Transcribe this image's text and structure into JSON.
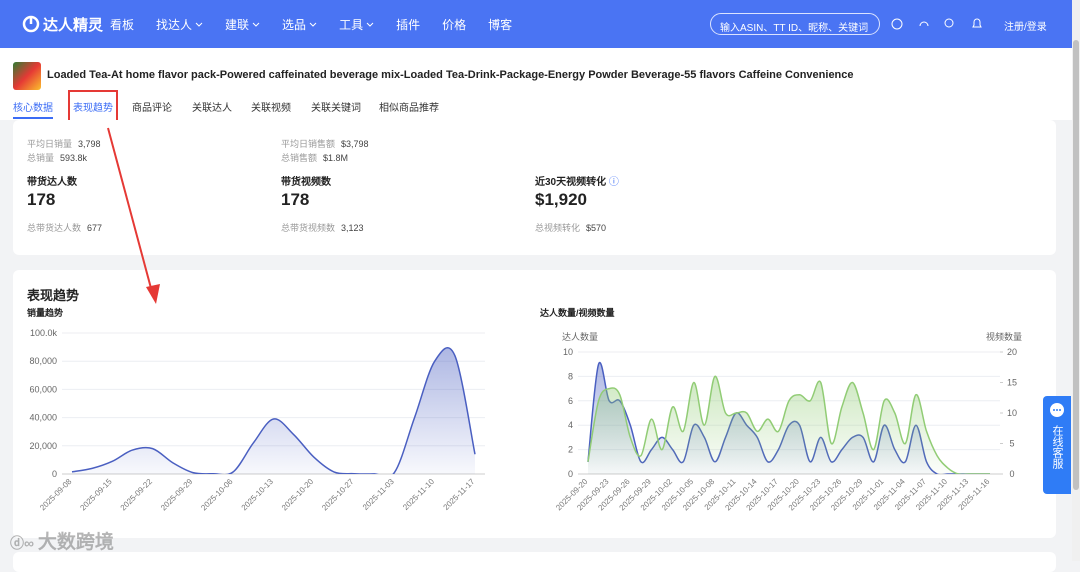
{
  "nav": {
    "logo": "达人精灵",
    "menu": [
      "看板",
      "找达人",
      "建联",
      "选品",
      "工具",
      "插件",
      "价格",
      "博客"
    ],
    "search_placeholder": "输入ASIN、TT ID、昵称、关键词",
    "login": "注册/登录"
  },
  "product": {
    "title": "Loaded Tea-At home flavor pack-Powered caffeinated beverage mix-Loaded Tea-Drink-Package-Energy Powder Beverage-55 flavors Caffeine Convenience"
  },
  "tabs": [
    "核心数据",
    "表现趋势",
    "商品评论",
    "关联达人",
    "关联视频",
    "关联关键词",
    "相似商品推荐"
  ],
  "stats": {
    "top": [
      [
        {
          "label": "平均日销量",
          "value": "3,798"
        },
        {
          "label": "总销量",
          "value": "593.8k"
        }
      ],
      [
        {
          "label": "平均日销售额",
          "value": "$3,798"
        },
        {
          "label": "总销售额",
          "value": "$1.8M"
        }
      ]
    ],
    "cards": [
      {
        "label": "带货达人数",
        "value": "178",
        "sub_label": "总带货达人数",
        "sub_value": "677"
      },
      {
        "label": "带货视频数",
        "value": "178",
        "sub_label": "总带货视频数",
        "sub_value": "3,123"
      },
      {
        "label": "近30天视频转化",
        "value": "$1,920",
        "sub_label": "总视频转化",
        "sub_value": "$570"
      }
    ]
  },
  "section_title": "表现趋势",
  "support": "在线客服",
  "watermark": "大数跨境",
  "chart_data": [
    {
      "type": "line",
      "title": "销量趋势",
      "categories": [
        "2025-09-08",
        null,
        "2025-09-15",
        null,
        "2025-09-22",
        null,
        "2025-09-29",
        null,
        "2025-10-06",
        null,
        "2025-10-13",
        null,
        "2025-10-20",
        null,
        "2025-10-27",
        null,
        "2025-11-03",
        null,
        "2025-11-10",
        null,
        "2025-11-17"
      ],
      "series": [
        {
          "color": "#4a5fc1",
          "values": [
            1500,
            4000,
            9000,
            17000,
            18000,
            8000,
            1000,
            200,
            1500,
            22000,
            39000,
            28000,
            12000,
            1500,
            200,
            100,
            1000,
            40000,
            80000,
            84000,
            14000
          ]
        }
      ],
      "ylim": [
        0,
        100000
      ],
      "yticks": [
        0,
        {
          "value": 20000,
          "label": "20,000"
        },
        {
          "value": 40000,
          "label": "40,000"
        },
        {
          "value": 60000,
          "label": "60,000"
        },
        {
          "value": 80000,
          "label": "80,000"
        },
        {
          "value": 100000,
          "label": "100.0k"
        }
      ],
      "grid": true
    },
    {
      "type": "line",
      "title": "达人数量/视频数量",
      "categories": [
        "2025-09-20",
        null,
        "2025-09-23",
        null,
        "2025-09-26",
        null,
        "2025-09-29",
        null,
        "2025-10-02",
        null,
        "2025-10-05",
        null,
        "2025-10-08",
        null,
        "2025-10-11",
        null,
        "2025-10-14",
        null,
        "2025-10-17",
        null,
        "2025-10-20",
        null,
        "2025-10-23",
        null,
        "2025-10-26",
        null,
        "2025-10-29",
        null,
        "2025-11-01",
        null,
        "2025-11-04",
        null,
        "2025-11-07",
        null,
        "2025-11-10",
        null,
        "2025-11-13",
        null,
        "2025-11-16"
      ],
      "series": [
        {
          "name": "达人数量",
          "color": "#4a5fc1",
          "values": [
            1,
            9,
            6,
            6,
            4,
            1,
            2,
            3,
            2,
            1,
            4,
            3,
            1,
            3,
            5,
            4,
            3,
            1,
            2,
            4,
            4,
            1,
            3,
            1,
            2,
            3,
            3,
            1,
            4,
            2,
            1,
            4,
            1,
            0,
            0,
            0,
            0,
            0,
            0
          ]
        },
        {
          "name": "视频数量",
          "color": "#91cc75",
          "axis": "y2",
          "values": [
            2,
            12,
            14,
            13,
            6,
            3,
            9,
            4,
            11,
            7,
            15,
            8,
            16,
            10,
            10,
            10,
            7,
            9,
            7,
            12,
            13,
            12,
            15,
            5,
            11,
            15,
            10,
            4,
            12,
            10,
            5,
            13,
            7,
            3,
            1,
            0,
            0,
            0,
            0
          ]
        }
      ],
      "ylim": [
        0,
        10
      ],
      "yticks": [
        0,
        2,
        4,
        6,
        8,
        10
      ],
      "y2lim": [
        0,
        20
      ],
      "y2ticks": [
        0,
        5,
        10,
        15,
        20
      ],
      "grid": true
    }
  ]
}
